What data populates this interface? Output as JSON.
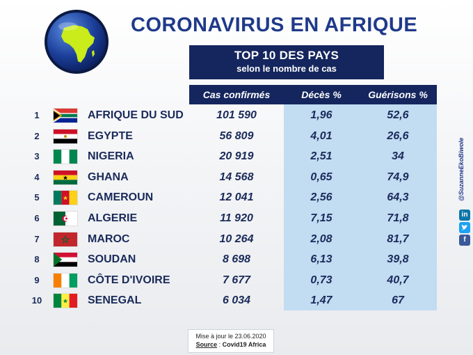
{
  "title": "CORONAVIRUS EN AFRIQUE",
  "subtitle_box": {
    "line1": "TOP 10 DES PAYS",
    "line2": "selon le nombre de cas"
  },
  "columns": {
    "cases": "Cas confirmés",
    "deaths": "Décès %",
    "recoveries": "Guérisons %"
  },
  "rows": [
    {
      "rank": "1",
      "country": "AFRIQUE DU SUD",
      "flag": "south-africa-flag",
      "cases": "101 590",
      "deaths": "1,96",
      "recoveries": "52,6"
    },
    {
      "rank": "2",
      "country": "EGYPTE",
      "flag": "egypt-flag",
      "cases": "56 809",
      "deaths": "4,01",
      "recoveries": "26,6"
    },
    {
      "rank": "3",
      "country": "NIGERIA",
      "flag": "nigeria-flag",
      "cases": "20 919",
      "deaths": "2,51",
      "recoveries": "34"
    },
    {
      "rank": "4",
      "country": "GHANA",
      "flag": "ghana-flag",
      "cases": "14 568",
      "deaths": "0,65",
      "recoveries": "74,9"
    },
    {
      "rank": "5",
      "country": "CAMEROUN",
      "flag": "cameroon-flag",
      "cases": "12 041",
      "deaths": "2,56",
      "recoveries": "64,3"
    },
    {
      "rank": "6",
      "country": "ALGERIE",
      "flag": "algeria-flag",
      "cases": "11 920",
      "deaths": "7,15",
      "recoveries": "71,8"
    },
    {
      "rank": "7",
      "country": "MAROC",
      "flag": "morocco-flag",
      "cases": "10 264",
      "deaths": "2,08",
      "recoveries": "81,7"
    },
    {
      "rank": "8",
      "country": "SOUDAN",
      "flag": "sudan-flag",
      "cases": "8 698",
      "deaths": "6,13",
      "recoveries": "39,8"
    },
    {
      "rank": "9",
      "country": "CÔTE D'IVOIRE",
      "flag": "cote-divoire-flag",
      "cases": "7 677",
      "deaths": "0,73",
      "recoveries": "40,7"
    },
    {
      "rank": "10",
      "country": "SENEGAL",
      "flag": "senegal-flag",
      "cases": "6 034",
      "deaths": "1,47",
      "recoveries": "67"
    }
  ],
  "footer": {
    "updated": "Mise à jour le 23.06.2020",
    "source_label": "Source",
    "source_sep": " : ",
    "source_value": "Covid19 Africa"
  },
  "social": {
    "handle": "@SuzanneEkoBiwole",
    "icons": [
      "linkedin-icon",
      "twitter-icon",
      "facebook-icon"
    ]
  },
  "colors": {
    "title": "#1f3a8a",
    "header_bg": "#15265e",
    "panel_bg": "#c2dcf2"
  }
}
